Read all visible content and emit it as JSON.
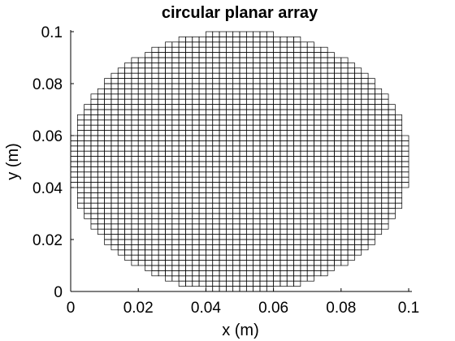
{
  "chart_data": {
    "type": "heatmap",
    "title": "circular planar array",
    "xlabel": "x (m)",
    "ylabel": "y (m)",
    "xlim": [
      0,
      0.1
    ],
    "ylim": [
      0,
      0.1
    ],
    "x_ticks": [
      "0",
      "0.02",
      "0.04",
      "0.06",
      "0.08",
      "0.1"
    ],
    "y_ticks": [
      "0",
      "0.02",
      "0.04",
      "0.06",
      "0.08",
      "0.1"
    ],
    "array": {
      "center": [
        0.05,
        0.05
      ],
      "radius": 0.05,
      "element_pitch": 0.002,
      "elements_per_side": 50
    },
    "grid": false,
    "legend": "none"
  }
}
